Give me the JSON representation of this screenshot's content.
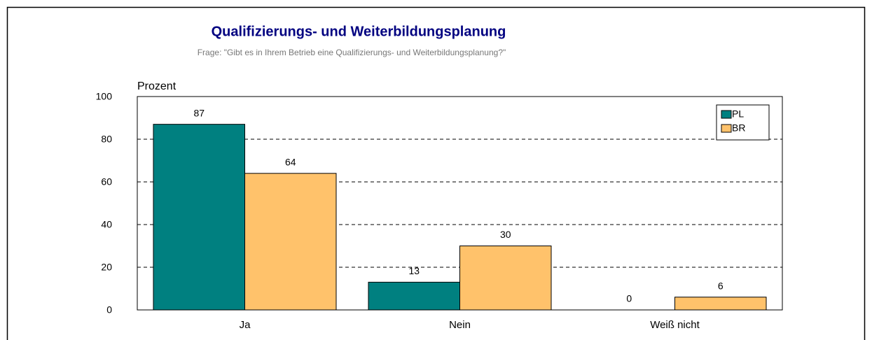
{
  "chart_data": {
    "type": "bar",
    "title": "Qualifizierungs- und Weiterbildungsplanung",
    "subtitle": "Frage: \"Gibt es in Ihrem Betrieb eine Qualifizierungs- und Weiterbildungsplanung?\"",
    "y_label": "Prozent",
    "categories": [
      "Ja",
      "Nein",
      "Weiß nicht"
    ],
    "series": [
      {
        "name": "PL",
        "color": "#008080",
        "values": [
          87,
          13,
          0
        ]
      },
      {
        "name": "BR",
        "color": "#ffc26b",
        "values": [
          64,
          30,
          6
        ]
      }
    ],
    "ylim": [
      0,
      100
    ],
    "yticks": [
      0,
      20,
      40,
      60,
      80,
      100
    ],
    "grid": true,
    "legend": "top-right"
  }
}
